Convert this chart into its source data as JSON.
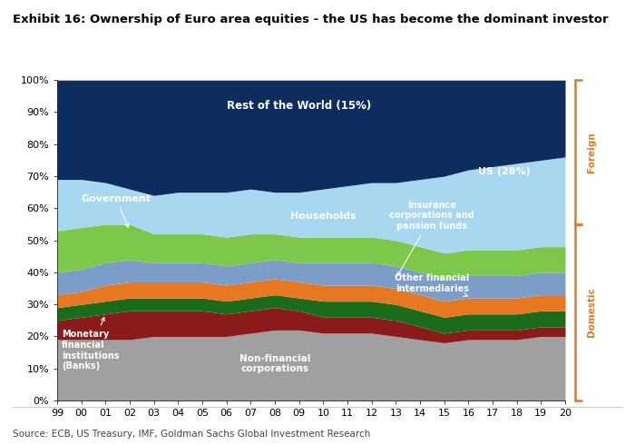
{
  "title": "Exhibit 16: Ownership of Euro area equities - the US has become the dominant investor",
  "source": "Source: ECB, US Treasury, IMF, Goldman Sachs Global Investment Research",
  "year_labels": [
    "99",
    "00",
    "01",
    "02",
    "03",
    "04",
    "05",
    "06",
    "07",
    "08",
    "09",
    "10",
    "11",
    "12",
    "13",
    "14",
    "15",
    "16",
    "17",
    "18",
    "19",
    "20"
  ],
  "series": {
    "non_financial_corps": [
      19,
      19,
      19,
      19,
      20,
      20,
      20,
      20,
      21,
      22,
      22,
      21,
      21,
      21,
      20,
      19,
      18,
      19,
      19,
      19,
      20,
      20
    ],
    "monetary_fin_institutions": [
      6,
      7,
      8,
      9,
      8,
      8,
      8,
      7,
      7,
      7,
      6,
      5,
      5,
      5,
      5,
      4,
      3,
      3,
      3,
      3,
      3,
      3
    ],
    "other_fin_intermediaries": [
      4,
      4,
      4,
      4,
      4,
      4,
      4,
      4,
      4,
      4,
      4,
      5,
      5,
      5,
      5,
      5,
      5,
      5,
      5,
      5,
      5,
      5
    ],
    "insurance_pension": [
      4,
      4,
      5,
      5,
      5,
      5,
      5,
      5,
      5,
      5,
      5,
      5,
      5,
      5,
      5,
      5,
      5,
      5,
      5,
      5,
      5,
      5
    ],
    "households": [
      7,
      7,
      7,
      7,
      6,
      6,
      6,
      6,
      6,
      6,
      6,
      7,
      7,
      7,
      7,
      7,
      7,
      7,
      7,
      7,
      7,
      7
    ],
    "government": [
      13,
      13,
      12,
      11,
      9,
      9,
      9,
      9,
      9,
      8,
      8,
      8,
      8,
      8,
      8,
      8,
      8,
      8,
      8,
      8,
      8,
      8
    ],
    "us": [
      16,
      15,
      13,
      11,
      12,
      13,
      13,
      14,
      14,
      13,
      14,
      15,
      16,
      17,
      18,
      21,
      24,
      25,
      26,
      27,
      27,
      28
    ],
    "rest_of_world": [
      31,
      31,
      32,
      34,
      36,
      35,
      35,
      35,
      34,
      35,
      35,
      34,
      33,
      32,
      32,
      31,
      30,
      28,
      27,
      26,
      25,
      24
    ]
  },
  "colors": {
    "non_financial_corps": "#a0a0a0",
    "monetary_fin_institutions": "#8b1a1a",
    "other_fin_intermediaries": "#1a6b1a",
    "insurance_pension": "#e87722",
    "households": "#7b9dc7",
    "government": "#7dc74a",
    "us": "#a8d8f0",
    "rest_of_world": "#0d2d5e"
  },
  "orange_color": "#E87722",
  "background_color": "#ffffff",
  "title_fontsize": 9.5,
  "source_fontsize": 7.5
}
